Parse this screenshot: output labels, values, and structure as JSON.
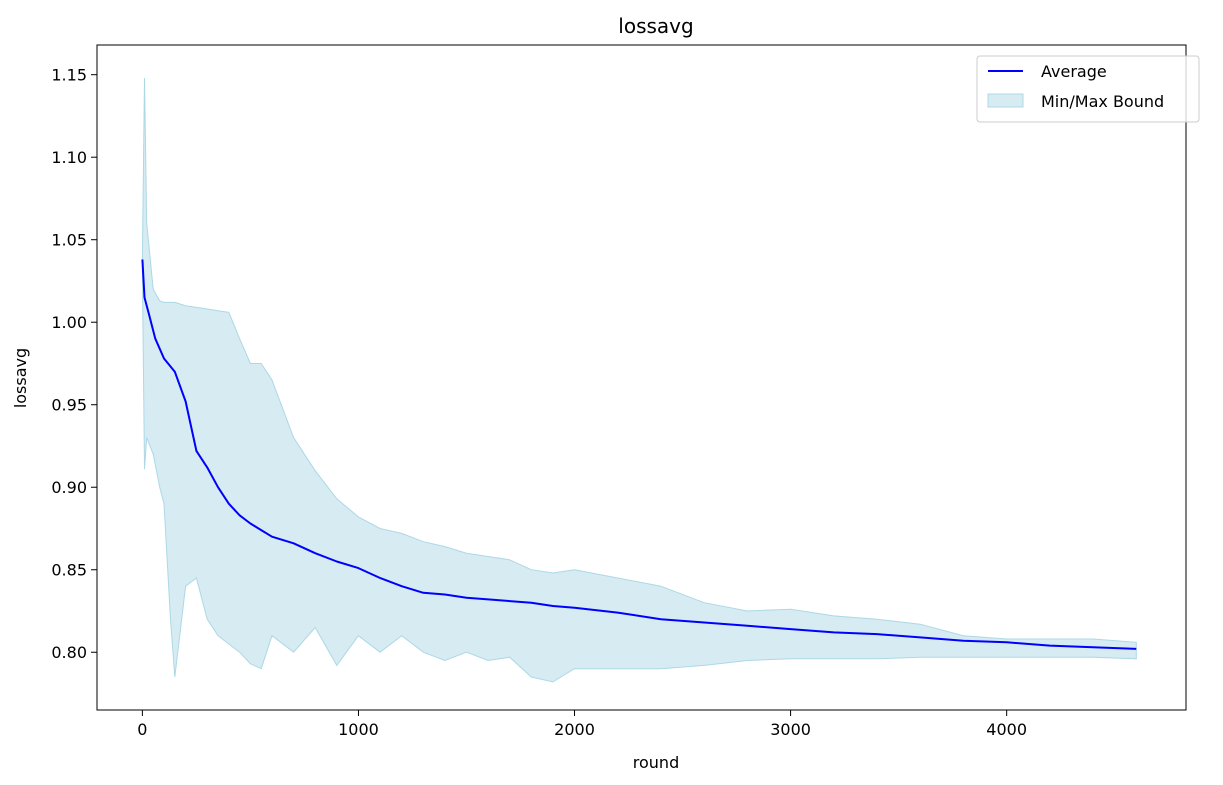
{
  "chart_data": {
    "type": "line",
    "title": "lossavg",
    "xlabel": "round",
    "ylabel": "lossavg",
    "xlim": [
      -210,
      4830
    ],
    "ylim": [
      0.765,
      1.168
    ],
    "xticks": [
      0,
      1000,
      2000,
      3000,
      4000
    ],
    "xtick_labels": [
      "0",
      "1000",
      "2000",
      "3000",
      "4000"
    ],
    "yticks": [
      0.8,
      0.85,
      0.9,
      0.95,
      1.0,
      1.05,
      1.1,
      1.15
    ],
    "ytick_labels": [
      "0.80",
      "0.85",
      "0.90",
      "0.95",
      "1.00",
      "1.05",
      "1.10",
      "1.15"
    ],
    "grid": false,
    "legend_position": "top-right",
    "colors": {
      "average": "#0000ff",
      "band": "#add8e6"
    },
    "series": [
      {
        "name": "Average",
        "type": "line",
        "x": [
          0,
          10,
          30,
          60,
          100,
          150,
          200,
          250,
          300,
          350,
          400,
          450,
          500,
          550,
          600,
          700,
          800,
          900,
          1000,
          1100,
          1200,
          1300,
          1400,
          1500,
          1600,
          1700,
          1800,
          1900,
          2000,
          2200,
          2400,
          2600,
          2800,
          3000,
          3200,
          3400,
          3600,
          3800,
          4000,
          4200,
          4400,
          4600
        ],
        "y": [
          1.038,
          1.015,
          1.005,
          0.99,
          0.978,
          0.97,
          0.952,
          0.922,
          0.912,
          0.9,
          0.89,
          0.883,
          0.878,
          0.874,
          0.87,
          0.866,
          0.86,
          0.855,
          0.851,
          0.845,
          0.84,
          0.836,
          0.835,
          0.833,
          0.832,
          0.831,
          0.83,
          0.828,
          0.827,
          0.824,
          0.82,
          0.818,
          0.816,
          0.814,
          0.812,
          0.811,
          0.809,
          0.807,
          0.806,
          0.804,
          0.803,
          0.802
        ]
      },
      {
        "name": "Min/Max Bound",
        "type": "band",
        "x": [
          0,
          10,
          20,
          50,
          80,
          100,
          130,
          150,
          200,
          250,
          300,
          350,
          400,
          450,
          500,
          550,
          600,
          700,
          800,
          900,
          1000,
          1100,
          1200,
          1300,
          1400,
          1500,
          1600,
          1700,
          1800,
          1900,
          2000,
          2200,
          2400,
          2600,
          2800,
          3000,
          3200,
          3400,
          3600,
          3800,
          4000,
          4200,
          4400,
          4600
        ],
        "upper": [
          1.04,
          1.148,
          1.06,
          1.02,
          1.013,
          1.012,
          1.012,
          1.012,
          1.01,
          1.009,
          1.008,
          1.007,
          1.006,
          0.99,
          0.975,
          0.975,
          0.965,
          0.93,
          0.91,
          0.893,
          0.882,
          0.875,
          0.872,
          0.867,
          0.864,
          0.86,
          0.858,
          0.856,
          0.85,
          0.848,
          0.85,
          0.845,
          0.84,
          0.83,
          0.825,
          0.826,
          0.822,
          0.82,
          0.817,
          0.81,
          0.808,
          0.808,
          0.808,
          0.806
        ],
        "lower": [
          1.03,
          0.911,
          0.93,
          0.92,
          0.9,
          0.89,
          0.82,
          0.785,
          0.84,
          0.845,
          0.82,
          0.81,
          0.805,
          0.8,
          0.793,
          0.79,
          0.81,
          0.8,
          0.815,
          0.792,
          0.81,
          0.8,
          0.81,
          0.8,
          0.795,
          0.8,
          0.795,
          0.797,
          0.785,
          0.782,
          0.79,
          0.79,
          0.79,
          0.792,
          0.795,
          0.796,
          0.796,
          0.796,
          0.797,
          0.797,
          0.797,
          0.797,
          0.797,
          0.796
        ]
      }
    ]
  }
}
